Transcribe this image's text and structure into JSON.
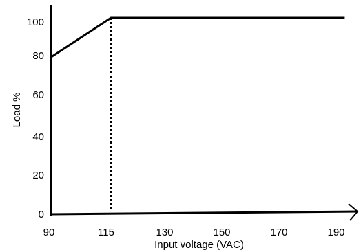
{
  "chart_data": {
    "type": "line",
    "title": "",
    "xlabel": "Input voltage (VAC)",
    "ylabel": "Load %",
    "x_ticks": [
      "90",
      "115",
      "130",
      "150",
      "170",
      "190"
    ],
    "y_ticks": [
      "0",
      "20",
      "40",
      "60",
      "80",
      "100"
    ],
    "ylim": [
      0,
      100
    ],
    "x": [
      90,
      115,
      193
    ],
    "values": [
      80,
      100,
      100
    ],
    "reference_line": {
      "x": 115,
      "y_from": 0,
      "y_to": 100,
      "style": "dotted"
    },
    "grid": false,
    "legend": "none"
  }
}
